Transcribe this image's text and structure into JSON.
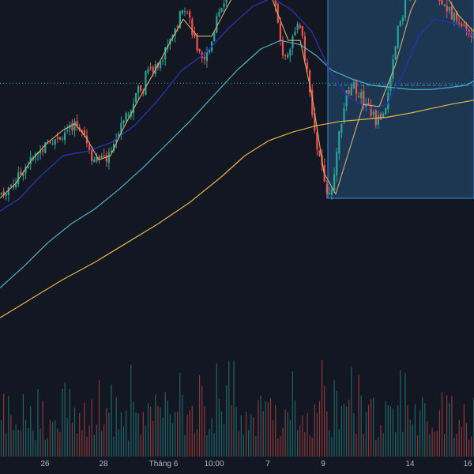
{
  "chart_data": {
    "type": "candlestick",
    "title": "",
    "xlabel": "",
    "ylabel": "",
    "x_tick_labels": [
      "26",
      "28",
      "Tháng 6",
      "10:00",
      "7",
      "9",
      "14",
      "16"
    ],
    "price_range": [
      0,
      100
    ],
    "volume_range": [
      0,
      100
    ],
    "grid": false,
    "legend": "none",
    "colors": {
      "background": "#131722",
      "up": "#26a69a",
      "down": "#ef5350",
      "ma_fast": "#d4b06a",
      "ma_mid": "#2535a8",
      "ma_slow": "#4ab3c9",
      "ma_long": "#e0b64a",
      "range_fill": "#2a5f8f",
      "range_border": "#3d8bd9",
      "dotted_line": "#4aa3b8"
    },
    "price_path": [
      [
        0,
        22
      ],
      [
        10,
        25
      ],
      [
        20,
        28
      ],
      [
        30,
        34
      ],
      [
        40,
        38
      ],
      [
        55,
        44
      ],
      [
        70,
        48
      ],
      [
        85,
        52
      ],
      [
        95,
        55
      ],
      [
        105,
        53
      ],
      [
        115,
        40
      ],
      [
        125,
        37
      ],
      [
        135,
        39
      ],
      [
        145,
        46
      ],
      [
        155,
        58
      ],
      [
        165,
        62
      ],
      [
        175,
        72
      ],
      [
        180,
        68
      ],
      [
        185,
        82
      ],
      [
        195,
        80
      ],
      [
        205,
        86
      ],
      [
        215,
        95
      ],
      [
        225,
        102
      ],
      [
        232,
        112
      ],
      [
        240,
        104
      ],
      [
        248,
        92
      ],
      [
        255,
        84
      ],
      [
        265,
        90
      ],
      [
        275,
        106
      ],
      [
        285,
        114
      ],
      [
        295,
        118
      ],
      [
        305,
        121
      ],
      [
        315,
        124
      ],
      [
        325,
        122
      ],
      [
        335,
        126
      ],
      [
        345,
        122
      ],
      [
        352,
        100
      ],
      [
        360,
        84
      ],
      [
        368,
        93
      ],
      [
        375,
        102
      ],
      [
        382,
        96
      ],
      [
        390,
        76
      ],
      [
        398,
        50
      ],
      [
        405,
        38
      ],
      [
        412,
        27
      ],
      [
        417,
        20
      ],
      [
        422,
        27
      ],
      [
        430,
        52
      ],
      [
        438,
        68
      ],
      [
        446,
        74
      ],
      [
        456,
        68
      ],
      [
        466,
        63
      ],
      [
        476,
        56
      ],
      [
        486,
        60
      ],
      [
        495,
        76
      ],
      [
        503,
        98
      ],
      [
        512,
        110
      ],
      [
        520,
        116
      ],
      [
        530,
        121
      ],
      [
        540,
        126
      ],
      [
        548,
        124
      ],
      [
        556,
        113
      ],
      [
        564,
        110
      ],
      [
        572,
        106
      ],
      [
        580,
        104
      ],
      [
        588,
        100
      ],
      [
        596,
        96
      ],
      [
        600,
        95
      ]
    ],
    "ma_fast": [
      [
        0,
        20
      ],
      [
        20,
        27
      ],
      [
        40,
        38
      ],
      [
        60,
        46
      ],
      [
        80,
        52
      ],
      [
        95,
        55
      ],
      [
        110,
        48
      ],
      [
        125,
        38
      ],
      [
        140,
        40
      ],
      [
        155,
        52
      ],
      [
        175,
        66
      ],
      [
        195,
        79
      ],
      [
        215,
        93
      ],
      [
        232,
        104
      ],
      [
        250,
        96
      ],
      [
        268,
        96
      ],
      [
        285,
        108
      ],
      [
        300,
        118
      ],
      [
        318,
        125
      ],
      [
        335,
        123
      ],
      [
        350,
        108
      ],
      [
        365,
        94
      ],
      [
        380,
        94
      ],
      [
        395,
        68
      ],
      [
        410,
        32
      ],
      [
        425,
        22
      ],
      [
        440,
        40
      ],
      [
        460,
        64
      ],
      [
        480,
        63
      ],
      [
        500,
        82
      ],
      [
        520,
        108
      ],
      [
        540,
        124
      ],
      [
        560,
        118
      ],
      [
        580,
        106
      ],
      [
        600,
        98
      ]
    ],
    "ma_mid": [
      [
        0,
        14
      ],
      [
        25,
        20
      ],
      [
        50,
        30
      ],
      [
        80,
        40
      ],
      [
        110,
        42
      ],
      [
        140,
        46
      ],
      [
        170,
        54
      ],
      [
        200,
        66
      ],
      [
        230,
        80
      ],
      [
        260,
        88
      ],
      [
        290,
        100
      ],
      [
        320,
        110
      ],
      [
        345,
        114
      ],
      [
        370,
        108
      ],
      [
        395,
        98
      ],
      [
        420,
        78
      ],
      [
        440,
        68
      ],
      [
        465,
        62
      ],
      [
        490,
        64
      ],
      [
        510,
        78
      ],
      [
        530,
        96
      ],
      [
        550,
        104
      ],
      [
        575,
        102
      ],
      [
        600,
        96
      ]
    ],
    "ma_slow": [
      [
        0,
        -22
      ],
      [
        30,
        -12
      ],
      [
        60,
        -1
      ],
      [
        90,
        8
      ],
      [
        120,
        15
      ],
      [
        150,
        24
      ],
      [
        180,
        34
      ],
      [
        210,
        45
      ],
      [
        240,
        56
      ],
      [
        270,
        68
      ],
      [
        300,
        80
      ],
      [
        330,
        90
      ],
      [
        355,
        94
      ],
      [
        380,
        92
      ],
      [
        400,
        87
      ],
      [
        420,
        80
      ],
      [
        445,
        76
      ],
      [
        470,
        73
      ],
      [
        495,
        72
      ],
      [
        520,
        71
      ],
      [
        545,
        71
      ],
      [
        570,
        72
      ],
      [
        590,
        73
      ],
      [
        600,
        75
      ]
    ],
    "ma_long": [
      [
        0,
        -36
      ],
      [
        40,
        -27
      ],
      [
        80,
        -18
      ],
      [
        120,
        -10
      ],
      [
        160,
        -1
      ],
      [
        200,
        8
      ],
      [
        240,
        18
      ],
      [
        280,
        30
      ],
      [
        310,
        40
      ],
      [
        340,
        47
      ],
      [
        370,
        51
      ],
      [
        400,
        54
      ],
      [
        430,
        56
      ],
      [
        460,
        57
      ],
      [
        490,
        58
      ],
      [
        520,
        60
      ],
      [
        545,
        62
      ],
      [
        570,
        64
      ],
      [
        600,
        66
      ]
    ],
    "range_box": {
      "x_start": 415,
      "x_end": 600,
      "top": 127,
      "bottom": 20,
      "mid": 73
    },
    "dotted_level": 74
  }
}
